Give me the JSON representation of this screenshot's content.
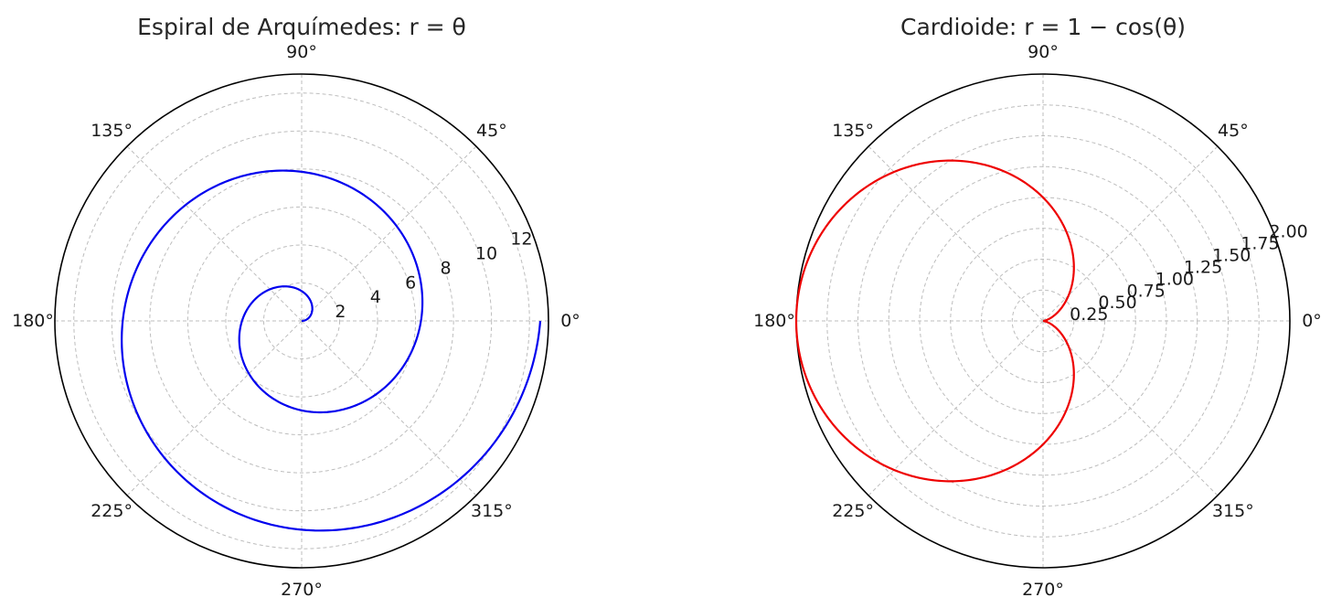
{
  "chart_data": [
    {
      "type": "line",
      "projection": "polar",
      "title": "Espiral de Arquímedes: r = θ",
      "series": [
        {
          "equation": "r = θ",
          "color": "#0000ee",
          "theta_range_rad": [
            0,
            12.566
          ],
          "theta": [
            0,
            0.785,
            1.571,
            2.356,
            3.142,
            3.927,
            4.712,
            5.498,
            6.283,
            7.069,
            7.854,
            8.639,
            9.425,
            10.21,
            10.996,
            11.781,
            12.566
          ],
          "r": [
            0,
            0.785,
            1.571,
            2.356,
            3.142,
            3.927,
            4.712,
            5.498,
            6.283,
            7.069,
            7.854,
            8.639,
            9.425,
            10.21,
            10.996,
            11.781,
            12.566
          ]
        }
      ],
      "rlim": [
        0,
        13
      ],
      "r_ticks": [
        2,
        4,
        6,
        8,
        10,
        12
      ],
      "r_tick_labels": [
        "2",
        "4",
        "6",
        "8",
        "10",
        "12"
      ],
      "angle_ticks_deg": [
        0,
        45,
        90,
        135,
        180,
        225,
        270,
        315
      ],
      "angle_tick_labels": [
        "0°",
        "45°",
        "90°",
        "135°",
        "180°",
        "225°",
        "270°",
        "315°"
      ],
      "grid": true
    },
    {
      "type": "line",
      "projection": "polar",
      "title": "Cardioide: r = 1 − cos(θ)",
      "series": [
        {
          "equation": "r = 1 - cos(θ)",
          "color": "#ee0000",
          "theta_range_rad": [
            0,
            6.283
          ],
          "theta": [
            0,
            0.785,
            1.571,
            2.356,
            3.142,
            3.927,
            4.712,
            5.498,
            6.283
          ],
          "r": [
            0,
            0.293,
            1.0,
            1.707,
            2.0,
            1.707,
            1.0,
            0.293,
            0
          ]
        }
      ],
      "rlim": [
        0,
        2.0
      ],
      "r_ticks": [
        0.25,
        0.5,
        0.75,
        1.0,
        1.25,
        1.5,
        1.75,
        2.0
      ],
      "r_tick_labels": [
        "0.25",
        "0.50",
        "0.75",
        "1.00",
        "1.25",
        "1.50",
        "1.75",
        "2.00"
      ],
      "angle_ticks_deg": [
        0,
        45,
        90,
        135,
        180,
        225,
        270,
        315
      ],
      "angle_tick_labels": [
        "0°",
        "45°",
        "90°",
        "135°",
        "180°",
        "225°",
        "270°",
        "315°"
      ],
      "grid": true
    }
  ]
}
